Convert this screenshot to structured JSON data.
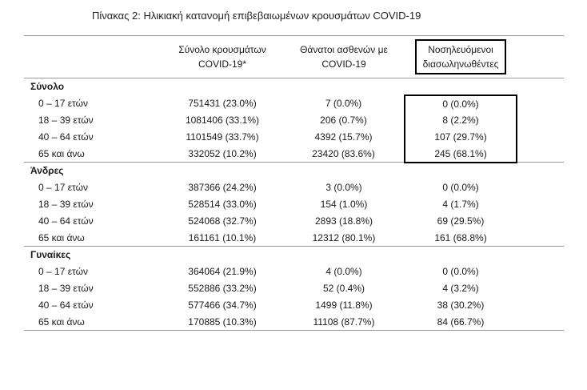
{
  "title": "Πίνακας 2: Ηλικιακή κατανομή επιβεβαιωμένων κρουσμάτων COVID-19",
  "table": {
    "columns": [
      {
        "line1": "Σύνολο κρουσμάτων",
        "line2": "COVID-19*"
      },
      {
        "line1": "Θάνατοι ασθενών με",
        "line2": "COVID-19"
      },
      {
        "line1": "Νοσηλευόμενοι",
        "line2": "διασωληνωθέντες"
      }
    ],
    "sections": [
      {
        "label": "Σύνολο",
        "rows": [
          {
            "label": "0 – 17 ετών",
            "cases": "751431 (23.0%)",
            "deaths": "7 (0.0%)",
            "intubated": "0 (0.0%)"
          },
          {
            "label": "18 – 39 ετών",
            "cases": "1081406 (33.1%)",
            "deaths": "206 (0.7%)",
            "intubated": "8 (2.2%)"
          },
          {
            "label": "40 – 64 ετών",
            "cases": "1101549 (33.7%)",
            "deaths": "4392 (15.7%)",
            "intubated": "107 (29.7%)"
          },
          {
            "label": "65 και άνω",
            "cases": "332052 (10.2%)",
            "deaths": "23420 (83.6%)",
            "intubated": "245 (68.1%)"
          }
        ]
      },
      {
        "label": "Άνδρες",
        "rows": [
          {
            "label": "0 – 17 ετών",
            "cases": "387366 (24.2%)",
            "deaths": "3 (0.0%)",
            "intubated": "0 (0.0%)"
          },
          {
            "label": "18 – 39 ετών",
            "cases": "528514 (33.0%)",
            "deaths": "154 (1.0%)",
            "intubated": "4 (1.7%)"
          },
          {
            "label": "40 – 64 ετών",
            "cases": "524068 (32.7%)",
            "deaths": "2893 (18.8%)",
            "intubated": "69 (29.5%)"
          },
          {
            "label": "65 και άνω",
            "cases": "161161 (10.1%)",
            "deaths": "12312 (80.1%)",
            "intubated": "161 (68.8%)"
          }
        ]
      },
      {
        "label": "Γυναίκες",
        "rows": [
          {
            "label": "0 – 17 ετών",
            "cases": "364064 (21.9%)",
            "deaths": "4 (0.0%)",
            "intubated": "0 (0.0%)"
          },
          {
            "label": "18 – 39 ετών",
            "cases": "552886 (33.2%)",
            "deaths": "52 (0.4%)",
            "intubated": "4 (3.2%)"
          },
          {
            "label": "40 – 64 ετών",
            "cases": "577466 (34.7%)",
            "deaths": "1499 (11.8%)",
            "intubated": "38 (30.2%)"
          },
          {
            "label": "65 και άνω",
            "cases": "170885 (10.3%)",
            "deaths": "11108 (87.7%)",
            "intubated": "84 (66.7%)"
          }
        ]
      }
    ]
  }
}
